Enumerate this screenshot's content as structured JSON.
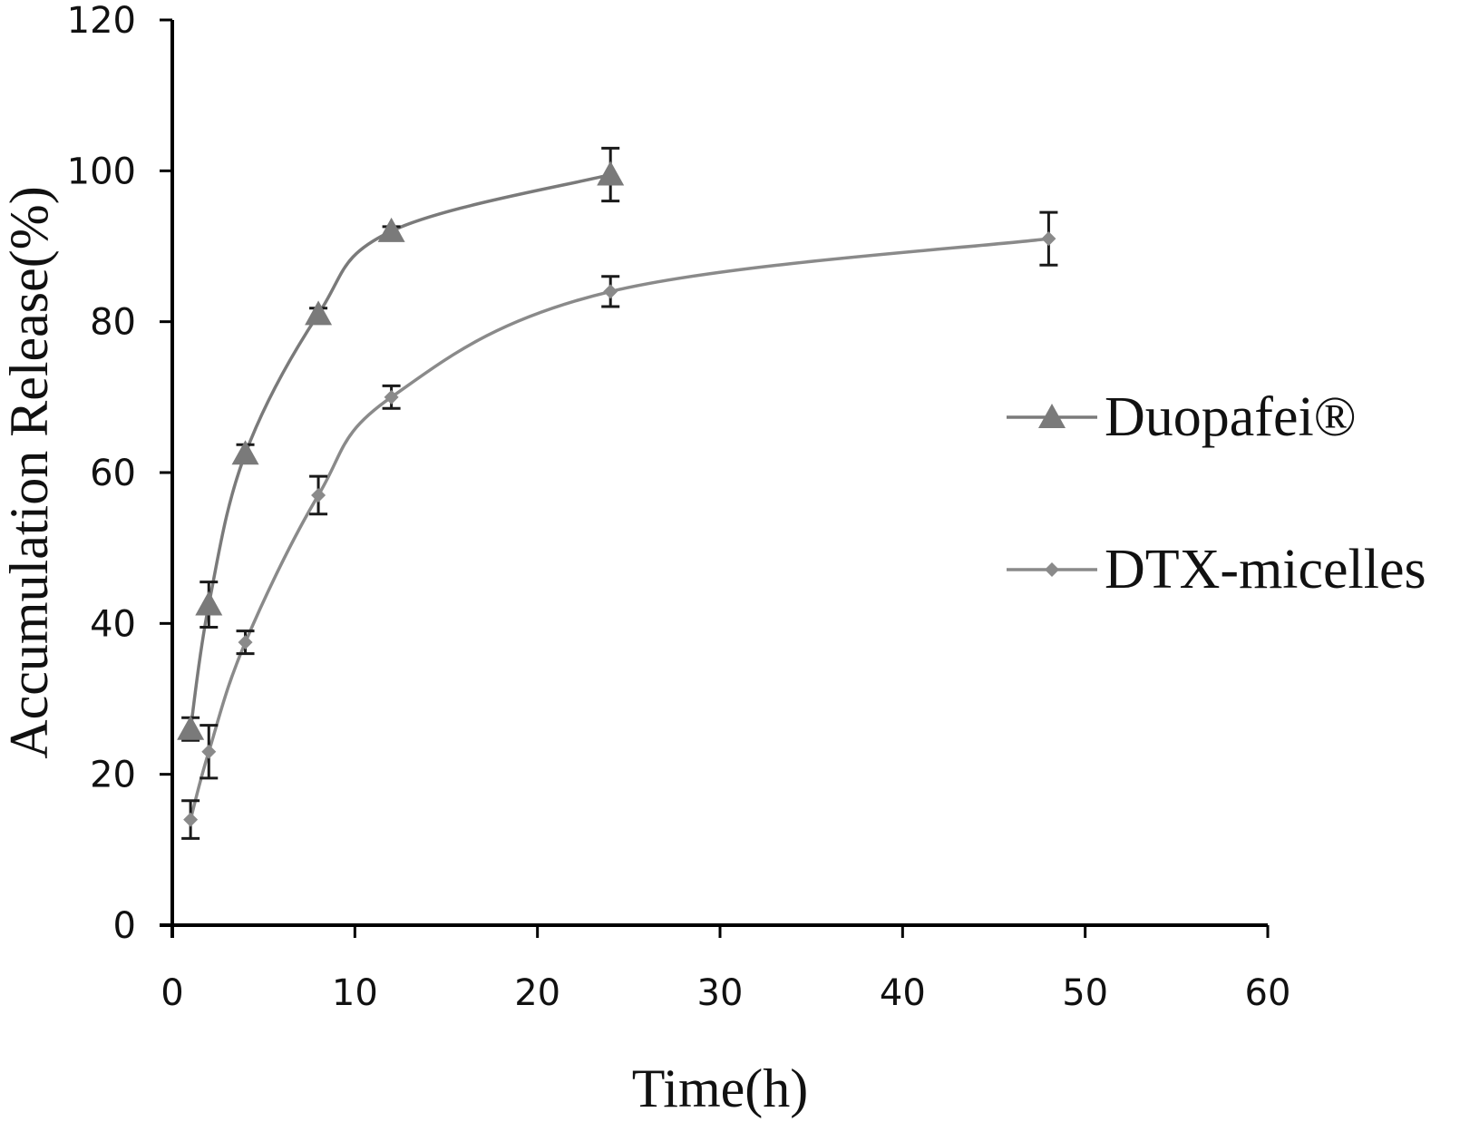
{
  "chart_data": {
    "type": "line",
    "xlabel": "Time(h)",
    "ylabel": "Accumulation Release(%)",
    "xlim": [
      0,
      60
    ],
    "ylim": [
      0,
      120
    ],
    "xticks": [
      0,
      10,
      20,
      30,
      40,
      50,
      60
    ],
    "yticks": [
      0,
      20,
      40,
      60,
      80,
      100,
      120
    ],
    "grid": false,
    "legend": "right",
    "series": [
      {
        "name": "Duopafei®",
        "marker": "triangle",
        "color": "#7a7a7a",
        "x": [
          1,
          2,
          4,
          8,
          12,
          24
        ],
        "y": [
          26,
          42.5,
          62.5,
          81,
          92,
          99.5
        ],
        "err": [
          1.5,
          3,
          1.2,
          0.8,
          0.6,
          3.5
        ]
      },
      {
        "name": "DTX-micelles",
        "marker": "diamond",
        "color": "#8a8a8a",
        "x": [
          1,
          2,
          4,
          8,
          12,
          24,
          48
        ],
        "y": [
          14,
          23,
          37.5,
          57,
          70,
          84,
          91
        ],
        "err": [
          2.5,
          3.5,
          1.5,
          2.5,
          1.5,
          2,
          3.5
        ]
      }
    ]
  }
}
